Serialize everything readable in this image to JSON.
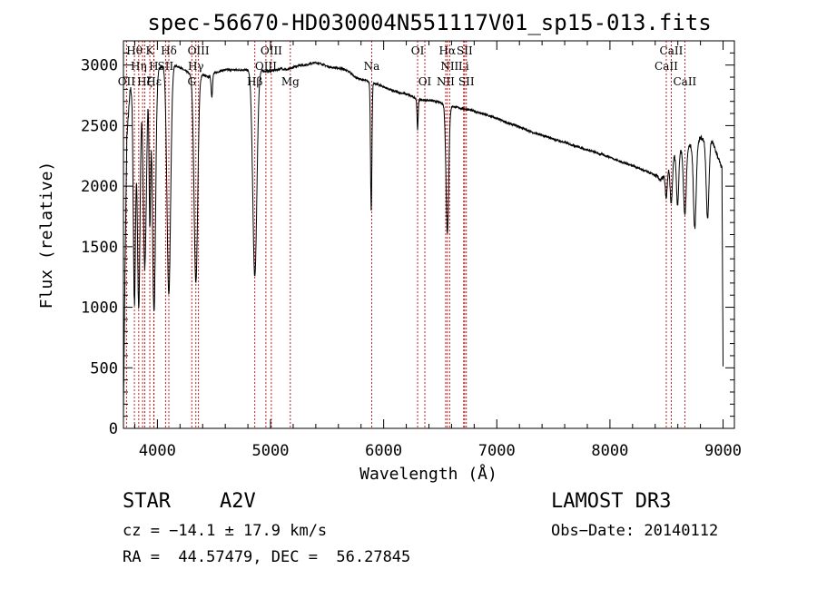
{
  "chart_data": {
    "type": "line",
    "title": "spec-56670-HD030004N551117V01_sp15-013.fits",
    "xlabel": "Wavelength (Å)",
    "ylabel": "Flux (relative)",
    "xlim": [
      3700,
      9100
    ],
    "ylim": [
      0,
      3200
    ],
    "xticks": [
      4000,
      5000,
      6000,
      7000,
      8000,
      9000
    ],
    "yticks": [
      0,
      500,
      1000,
      1500,
      2000,
      2500,
      3000
    ],
    "line_color": "#000000",
    "marker_color": "#cc0000",
    "grid": false,
    "continuum": [
      [
        3700,
        100
      ],
      [
        3710,
        1000
      ],
      [
        3730,
        2400
      ],
      [
        3760,
        2800
      ],
      [
        3800,
        2850
      ],
      [
        3850,
        2900
      ],
      [
        3900,
        2930
      ],
      [
        3950,
        2950
      ],
      [
        4000,
        2970
      ],
      [
        4050,
        2985
      ],
      [
        4100,
        3000
      ],
      [
        4150,
        3000
      ],
      [
        4200,
        2980
      ],
      [
        4250,
        2950
      ],
      [
        4300,
        2920
      ],
      [
        4350,
        2900
      ],
      [
        4400,
        2920
      ],
      [
        4450,
        2900
      ],
      [
        4500,
        2930
      ],
      [
        4550,
        2950
      ],
      [
        4600,
        2960
      ],
      [
        4650,
        2960
      ],
      [
        4700,
        2960
      ],
      [
        4750,
        2960
      ],
      [
        4800,
        2960
      ],
      [
        4850,
        2950
      ],
      [
        4900,
        2960
      ],
      [
        4950,
        2950
      ],
      [
        5000,
        2950
      ],
      [
        5050,
        2960
      ],
      [
        5100,
        2970
      ],
      [
        5150,
        2960
      ],
      [
        5200,
        2980
      ],
      [
        5250,
        3000
      ],
      [
        5300,
        3000
      ],
      [
        5350,
        3010
      ],
      [
        5400,
        3020
      ],
      [
        5450,
        3010
      ],
      [
        5500,
        2990
      ],
      [
        5550,
        2980
      ],
      [
        5600,
        2975
      ],
      [
        5650,
        2965
      ],
      [
        5700,
        2940
      ],
      [
        5750,
        2900
      ],
      [
        5800,
        2880
      ],
      [
        5850,
        2870
      ],
      [
        5900,
        2850
      ],
      [
        5950,
        2840
      ],
      [
        6000,
        2820
      ],
      [
        6050,
        2800
      ],
      [
        6100,
        2780
      ],
      [
        6150,
        2770
      ],
      [
        6200,
        2760
      ],
      [
        6250,
        2740
      ],
      [
        6300,
        2720
      ],
      [
        6350,
        2710
      ],
      [
        6400,
        2710
      ],
      [
        6450,
        2700
      ],
      [
        6500,
        2690
      ],
      [
        6550,
        2670
      ],
      [
        6600,
        2660
      ],
      [
        6650,
        2650
      ],
      [
        6700,
        2640
      ],
      [
        6750,
        2630
      ],
      [
        6800,
        2620
      ],
      [
        6900,
        2590
      ],
      [
        7000,
        2560
      ],
      [
        7100,
        2520
      ],
      [
        7200,
        2490
      ],
      [
        7300,
        2450
      ],
      [
        7400,
        2420
      ],
      [
        7500,
        2390
      ],
      [
        7600,
        2360
      ],
      [
        7700,
        2330
      ],
      [
        7800,
        2300
      ],
      [
        7900,
        2270
      ],
      [
        8000,
        2240
      ],
      [
        8100,
        2200
      ],
      [
        8200,
        2170
      ],
      [
        8300,
        2130
      ],
      [
        8400,
        2090
      ],
      [
        8450,
        2050
      ],
      [
        8500,
        2100
      ],
      [
        8550,
        2230
      ],
      [
        8600,
        2300
      ],
      [
        8650,
        2310
      ],
      [
        8700,
        2330
      ],
      [
        8750,
        2350
      ],
      [
        8800,
        2400
      ],
      [
        8850,
        2380
      ],
      [
        8900,
        2380
      ],
      [
        8950,
        2250
      ],
      [
        8990,
        2150
      ],
      [
        9000,
        500
      ]
    ],
    "absorption_lines": [
      {
        "center": 3797,
        "depth": 1800,
        "width": 10
      },
      {
        "center": 3835,
        "depth": 1900,
        "width": 12
      },
      {
        "center": 3889,
        "depth": 1600,
        "width": 14
      },
      {
        "center": 3933,
        "depth": 1200,
        "width": 7
      },
      {
        "center": 3970,
        "depth": 2000,
        "width": 14
      },
      {
        "center": 4101,
        "depth": 1900,
        "width": 16
      },
      {
        "center": 4340,
        "depth": 1700,
        "width": 16
      },
      {
        "center": 4481,
        "depth": 180,
        "width": 6
      },
      {
        "center": 4861,
        "depth": 1700,
        "width": 18
      },
      {
        "center": 5890,
        "depth": 1050,
        "width": 6
      },
      {
        "center": 6300,
        "depth": 250,
        "width": 5
      },
      {
        "center": 6563,
        "depth": 1050,
        "width": 12
      },
      {
        "center": 8498,
        "depth": 200,
        "width": 8
      },
      {
        "center": 8542,
        "depth": 350,
        "width": 10
      },
      {
        "center": 8598,
        "depth": 450,
        "width": 10
      },
      {
        "center": 8662,
        "depth": 550,
        "width": 12
      },
      {
        "center": 8750,
        "depth": 700,
        "width": 12
      },
      {
        "center": 8863,
        "depth": 650,
        "width": 12
      }
    ],
    "line_markers": [
      {
        "wavelength": 3727,
        "label": "OII",
        "row": 2
      },
      {
        "wavelength": 3797,
        "label": "Hθ",
        "row": 0
      },
      {
        "wavelength": 3835,
        "label": "Hη",
        "row": 1
      },
      {
        "wavelength": 3869,
        "label": "",
        "row": 2
      },
      {
        "wavelength": 3889,
        "label": "Hζ",
        "row": 2
      },
      {
        "wavelength": 3933,
        "label": "K",
        "row": 0
      },
      {
        "wavelength": 3968,
        "label": "H",
        "row": 1
      },
      {
        "wavelength": 3970,
        "label": "Hε",
        "row": 2
      },
      {
        "wavelength": 4101,
        "label": "Hδ",
        "row": 0
      },
      {
        "wavelength": 4072,
        "label": "SII",
        "row": 1
      },
      {
        "wavelength": 4304,
        "label": "G",
        "row": 2
      },
      {
        "wavelength": 4340,
        "label": "Hγ",
        "row": 1
      },
      {
        "wavelength": 4363,
        "label": "OIII",
        "row": 0
      },
      {
        "wavelength": 4861,
        "label": "Hβ",
        "row": 2
      },
      {
        "wavelength": 4959,
        "label": "OIII",
        "row": 1
      },
      {
        "wavelength": 5007,
        "label": "OIII",
        "row": 0
      },
      {
        "wavelength": 5175,
        "label": "Mg",
        "row": 2
      },
      {
        "wavelength": 5894,
        "label": "Na",
        "row": 1
      },
      {
        "wavelength": 6300,
        "label": "OI",
        "row": 0
      },
      {
        "wavelength": 6364,
        "label": "OI",
        "row": 2
      },
      {
        "wavelength": 6548,
        "label": "NII",
        "row": 2
      },
      {
        "wavelength": 6563,
        "label": "Hα",
        "row": 0
      },
      {
        "wavelength": 6583,
        "label": "NII",
        "row": 1
      },
      {
        "wavelength": 6707,
        "label": "Li",
        "row": 1
      },
      {
        "wavelength": 6716,
        "label": "SII",
        "row": 0
      },
      {
        "wavelength": 6731,
        "label": "SII",
        "row": 2
      },
      {
        "wavelength": 8498,
        "label": "CaII",
        "row": 1
      },
      {
        "wavelength": 8542,
        "label": "CaII",
        "row": 0
      },
      {
        "wavelength": 8662,
        "label": "CaII",
        "row": 2
      }
    ]
  },
  "info": {
    "object_class": "STAR",
    "subclass": "A2V",
    "survey": "LAMOST DR3",
    "cz": "cz = −14.1 ± 17.9 km/s",
    "obs_date": "Obs−Date: 20140112",
    "coords": "RA =  44.57479, DEC =  56.27845"
  }
}
